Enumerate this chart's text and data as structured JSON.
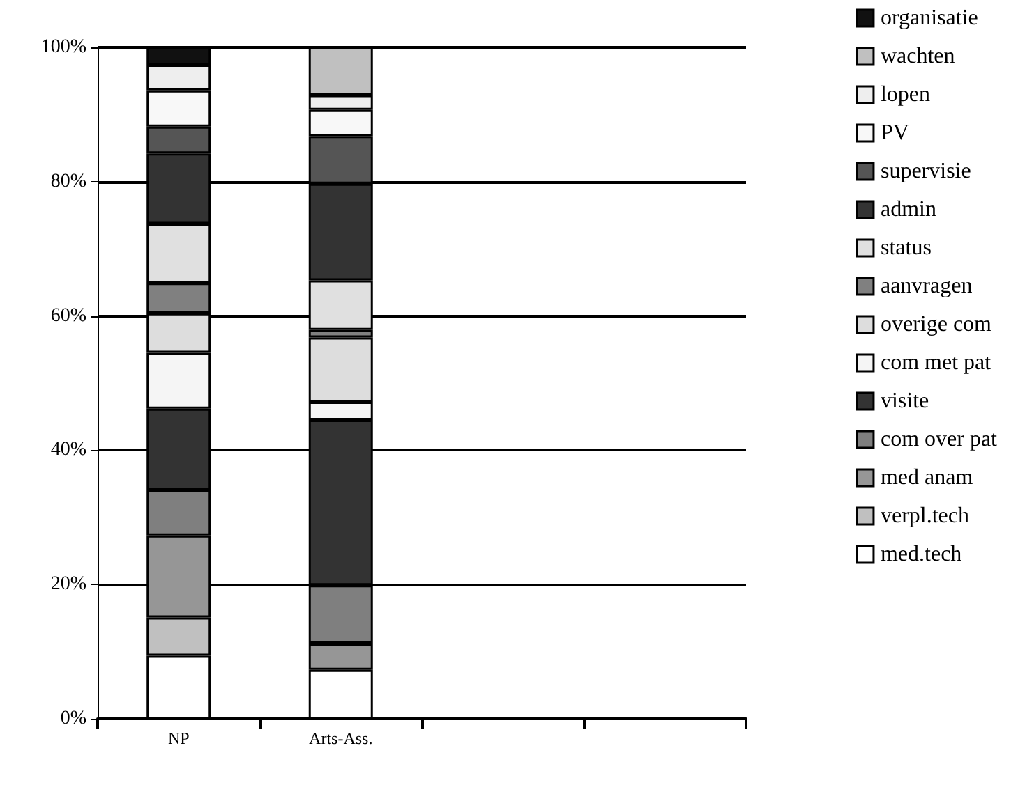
{
  "chart_data": {
    "type": "bar",
    "stacked": true,
    "categories": [
      "NP",
      "Arts-Ass.",
      null,
      null
    ],
    "ylim": [
      0,
      100
    ],
    "yticks": [
      {
        "value": 0,
        "label": "0%"
      },
      {
        "value": 20,
        "label": "20%"
      },
      {
        "value": 40,
        "label": "40%"
      },
      {
        "value": 60,
        "label": "60%"
      },
      {
        "value": 80,
        "label": "80%"
      },
      {
        "value": 100,
        "label": "100%"
      }
    ],
    "grid": "y",
    "legend": "right",
    "series": [
      {
        "name": "med.tech",
        "color": "#ffffff",
        "values": [
          9.4,
          7.3,
          null,
          null
        ]
      },
      {
        "name": "verpl.tech",
        "color": "#c0c0c0",
        "values": [
          5.7,
          0,
          null,
          null
        ]
      },
      {
        "name": "med anam",
        "color": "#969696",
        "values": [
          12.2,
          3.9,
          null,
          null
        ]
      },
      {
        "name": "com over pat",
        "color": "#7f7f7f",
        "values": [
          6.8,
          8.7,
          null,
          null
        ]
      },
      {
        "name": "visite",
        "color": "#333333",
        "values": [
          12.1,
          24.6,
          null,
          null
        ]
      },
      {
        "name": "com met pat",
        "color": "#f5f5f5",
        "values": [
          8.3,
          2.7,
          null,
          null
        ]
      },
      {
        "name": "overige com",
        "color": "#dddddd",
        "values": [
          5.9,
          9.6,
          null,
          null
        ]
      },
      {
        "name": "aanvragen",
        "color": "#808080",
        "values": [
          4.5,
          1.1,
          null,
          null
        ]
      },
      {
        "name": "status",
        "color": "#e0e0e0",
        "values": [
          8.8,
          7.4,
          null,
          null
        ]
      },
      {
        "name": "admin",
        "color": "#333333",
        "values": [
          10.5,
          14.4,
          null,
          null
        ]
      },
      {
        "name": "supervisie",
        "color": "#555555",
        "values": [
          4.0,
          7.1,
          null,
          null
        ]
      },
      {
        "name": "PV",
        "color": "#f8f8f8",
        "values": [
          5.4,
          3.9,
          null,
          null
        ]
      },
      {
        "name": "lopen",
        "color": "#eeeeee",
        "values": [
          3.8,
          2.2,
          null,
          null
        ]
      },
      {
        "name": "wachten",
        "color": "#c0c0c0",
        "values": [
          0,
          7.1,
          null,
          null
        ]
      },
      {
        "name": "organisatie",
        "color": "#111111",
        "values": [
          2.6,
          0,
          null,
          null
        ]
      }
    ]
  }
}
